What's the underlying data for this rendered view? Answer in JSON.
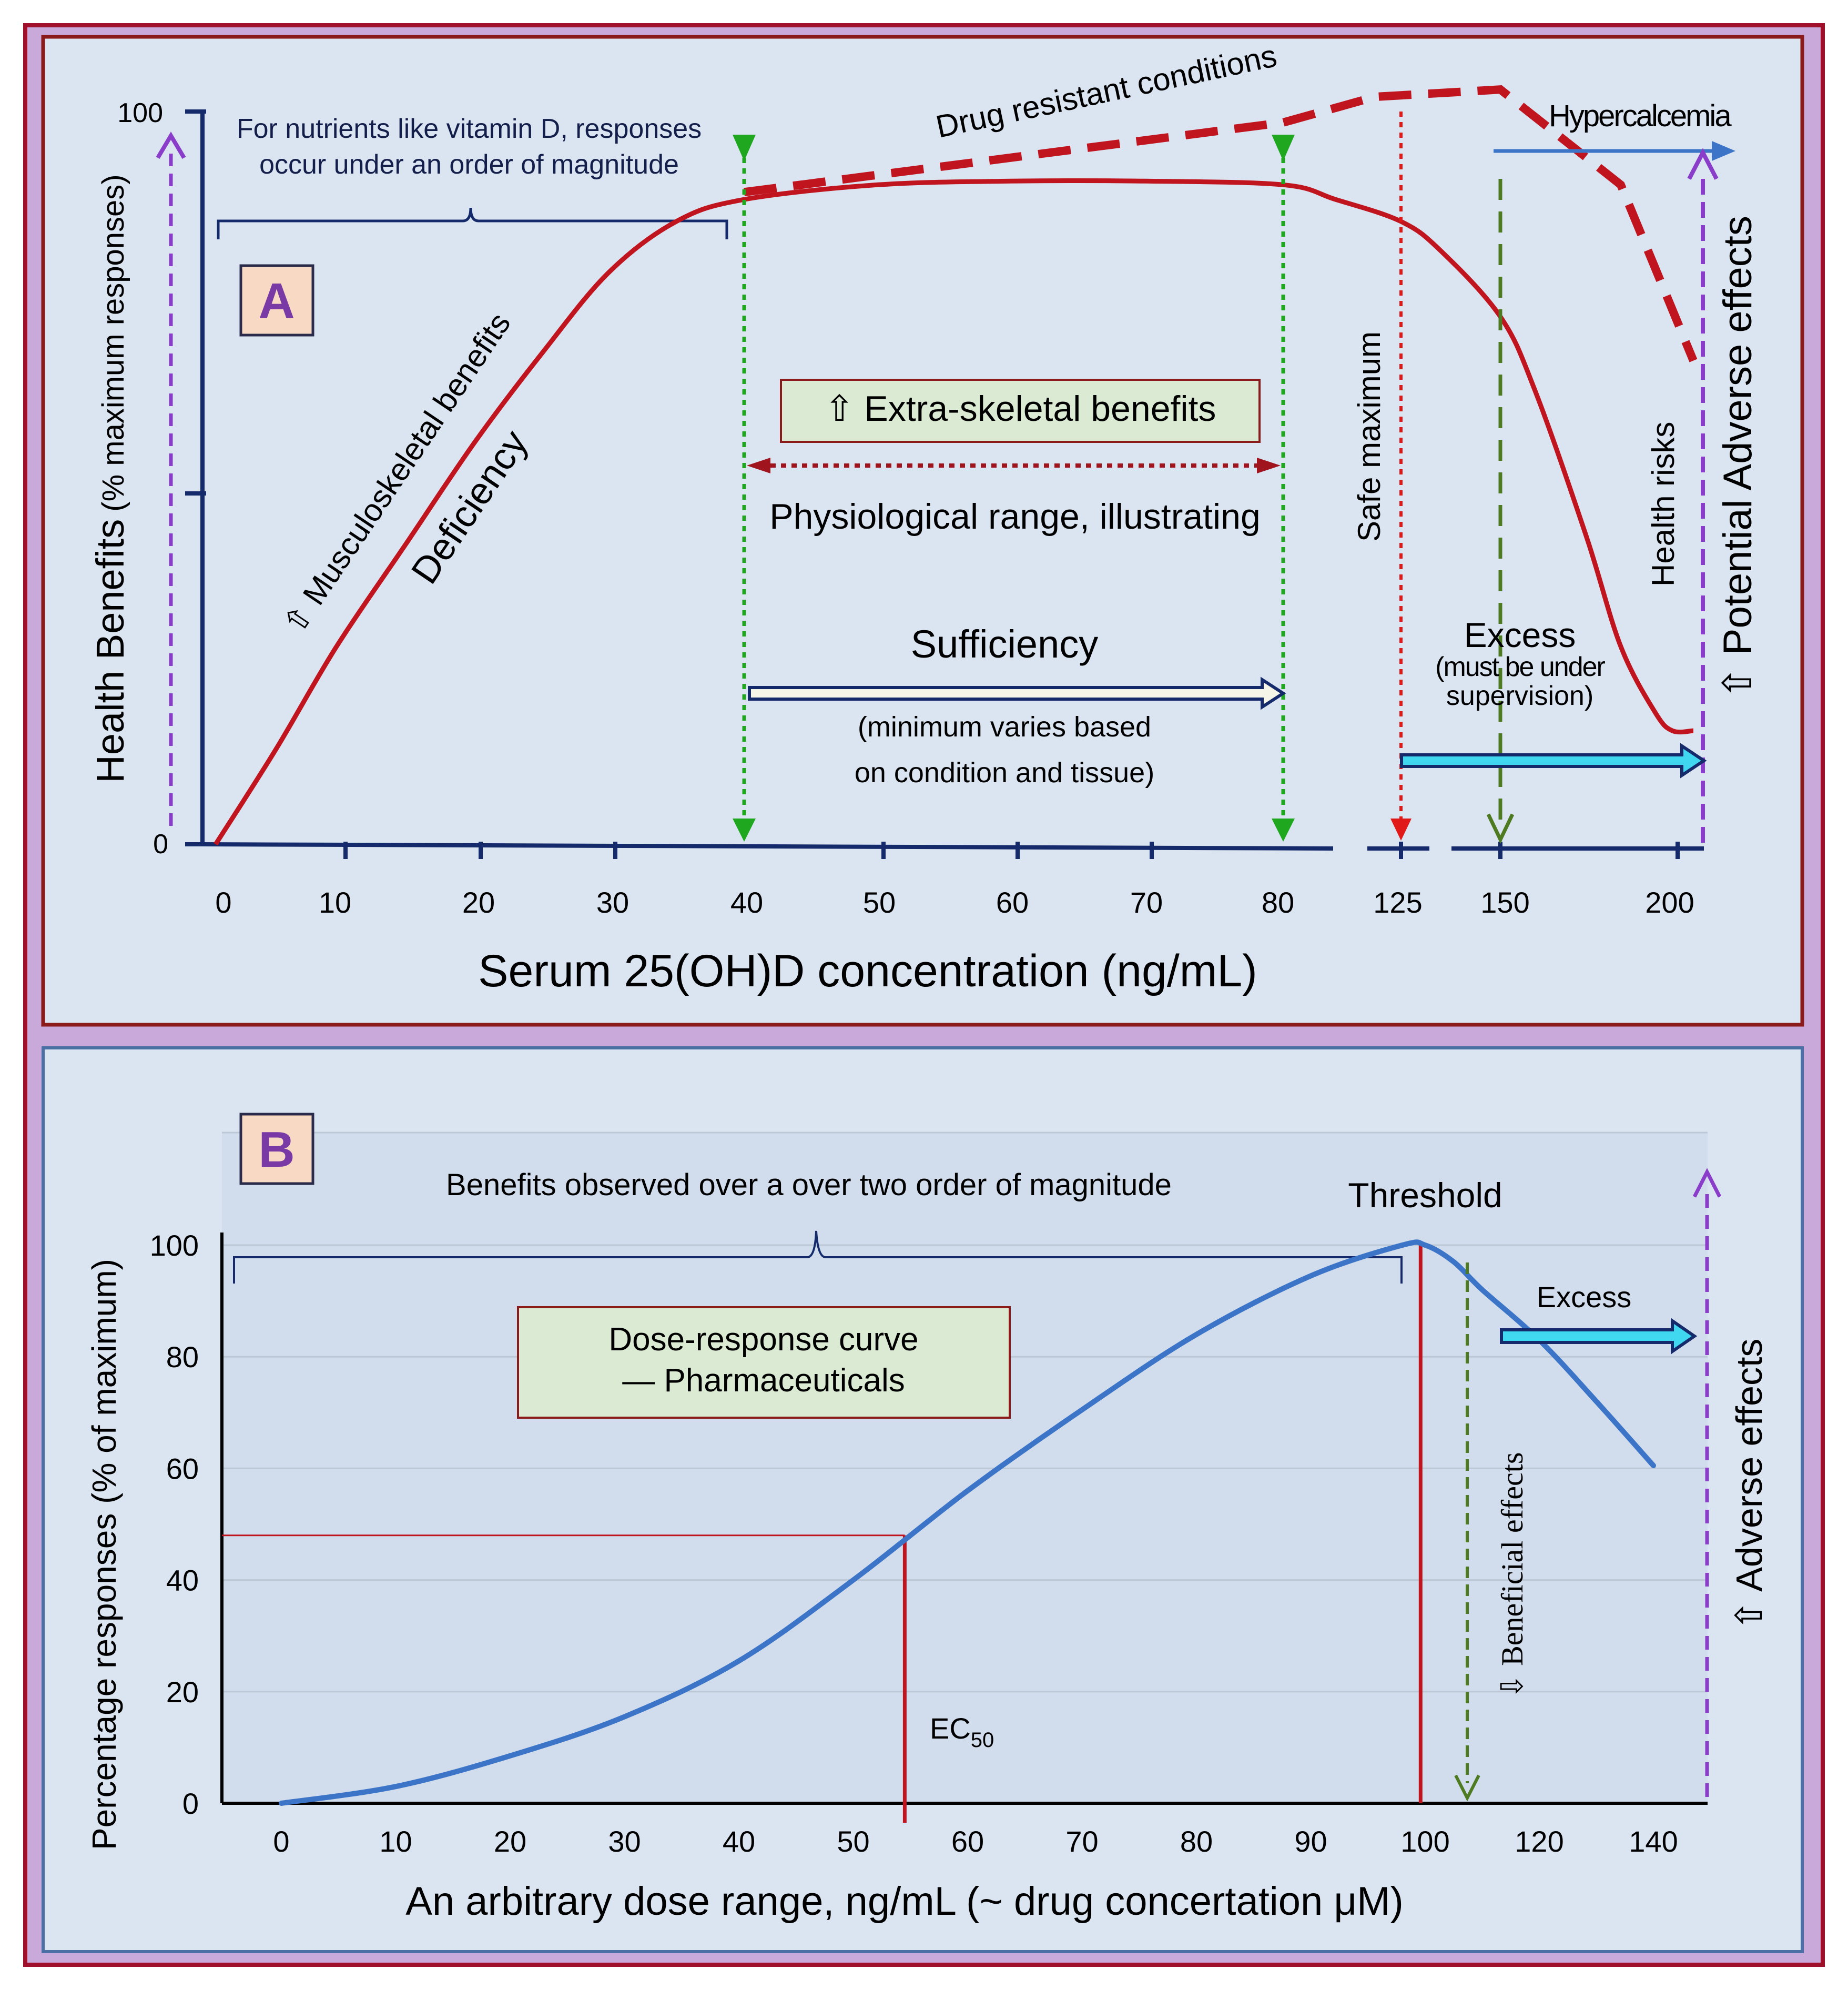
{
  "colors": {
    "outer_bg": "#c9a9d9",
    "outer_border": "#a0102a",
    "panel_bg": "#dbe5f1",
    "panel_a_border": "#8b1a1a",
    "panel_b_border": "#4a6fa5",
    "red_curve": "#c0141e",
    "blue_curve": "#3c75c8",
    "green": "#1fa81f",
    "dark_green": "#4e7a22",
    "purple": "#8a3dc8",
    "navy": "#142a6b",
    "cyan": "#40d8f0",
    "badge_bg": "#f7d9c4",
    "box_bg": "#dbead2"
  },
  "chart_data": [
    {
      "panel": "A",
      "type": "line",
      "badge": "A",
      "xlabel": "Serum 25(OH)D concentration (ng/mL)",
      "ylabel_main": "Health Benefits",
      "ylabel_sub": "(% maximum responses)",
      "y_ticks": [
        "100",
        "0"
      ],
      "x_ticks": [
        "0",
        "10",
        "20",
        "30",
        "40",
        "50",
        "60",
        "70",
        "80",
        "125",
        "150",
        "200"
      ],
      "x_scale_note": "piecewise: 0-80 linear, then 125, 150, 200",
      "ylim": [
        0,
        100
      ],
      "series": [
        {
          "name": "Health benefits curve",
          "style": "solid",
          "x": [
            0,
            5,
            10,
            15,
            20,
            25,
            30,
            35,
            40,
            50,
            60,
            70,
            80,
            100,
            125,
            135,
            150,
            160,
            175,
            185,
            195,
            200,
            205
          ],
          "y": [
            0,
            13,
            27,
            41,
            55,
            67,
            78,
            85,
            88,
            90,
            90.5,
            90.5,
            90,
            88,
            85,
            81,
            72,
            62,
            42,
            27,
            18,
            15.5,
            15.5
          ]
        },
        {
          "name": "Drug resistant conditions",
          "style": "dashed",
          "x": [
            40,
            80,
            115,
            150,
            185,
            205
          ],
          "y": [
            89,
            98.5,
            102,
            103,
            90,
            66
          ]
        }
      ],
      "annotations": {
        "magnitude_note_line1": "For nutrients like vitamin D, responses",
        "magnitude_note_line2": "occur under an order of magnitude",
        "musculoskeletal": "⇧ Musculoskeletal benefits",
        "deficiency": "Deficiency",
        "drug_resistant": "Drug resistant conditions",
        "hypercalcemia": "Hypercalcemia",
        "extra_skeletal": "⇧ Extra-skeletal benefits",
        "physiological": "Physiological range, illustrating",
        "sufficiency": "Sufficiency",
        "sufficiency_note_line1": "(minimum  varies based",
        "sufficiency_note_line2": "on condition and tissue)",
        "safe_maximum": "Safe maximum",
        "excess": "Excess",
        "excess_note_line1": "(must be under",
        "excess_note_line2": "supervision)",
        "health_risks": "Health risks",
        "potential_adverse": "⇧ Potential  Adverse effects"
      }
    },
    {
      "panel": "B",
      "type": "line",
      "badge": "B",
      "xlabel": "An arbitrary dose range, ng/mL (~ drug concertation μM)",
      "ylabel": "Percentage responses (% of maximum)",
      "y_ticks": [
        0,
        20,
        40,
        60,
        80,
        100
      ],
      "x_ticks": [
        0,
        10,
        20,
        30,
        40,
        50,
        60,
        70,
        80,
        90,
        100,
        120,
        140
      ],
      "x_scale_note": "piecewise: 0-100 linear, then 120, 140",
      "ylim": [
        0,
        100
      ],
      "series": [
        {
          "name": "Dose-response curve",
          "x": [
            0,
            10,
            20,
            30,
            40,
            50,
            60,
            70,
            80,
            90,
            98,
            100,
            105,
            110,
            120,
            130,
            140
          ],
          "y": [
            0,
            3,
            8.5,
            15.5,
            25.5,
            40,
            56,
            70.5,
            84,
            94.5,
            100,
            100,
            97,
            92,
            83,
            72,
            60.5
          ]
        }
      ],
      "ec50": {
        "x": 54.5,
        "y": 48,
        "label_main": "EC",
        "label_sub": "50"
      },
      "annotations": {
        "benefits_note": "Benefits observed over a over two order of magnitude",
        "threshold": "Threshold",
        "box_line1": "Dose-response curve",
        "box_line2": "— Pharmaceuticals",
        "excess": "Excess",
        "beneficial": "⇩ Beneficial effects",
        "adverse": "⇧ Adverse effects"
      }
    }
  ]
}
